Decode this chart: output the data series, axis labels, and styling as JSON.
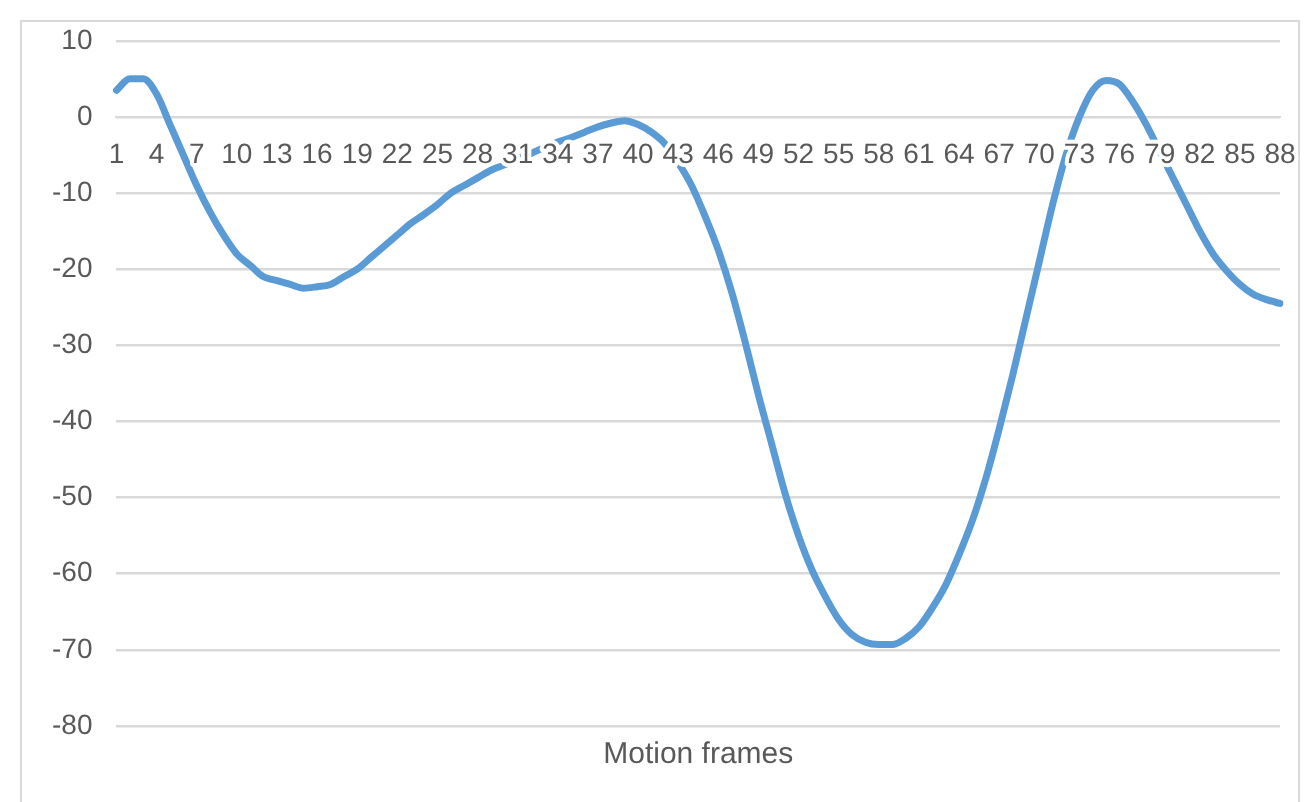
{
  "chart_data": {
    "type": "line",
    "xlabel": "Motion frames",
    "categories": [
      "1",
      null,
      null,
      "4",
      null,
      null,
      "7",
      null,
      null,
      "10",
      null,
      null,
      "13",
      null,
      null,
      "16",
      null,
      null,
      "19",
      null,
      null,
      "22",
      null,
      null,
      "25",
      null,
      null,
      "28",
      null,
      null,
      "31",
      null,
      null,
      "34",
      null,
      null,
      "37",
      null,
      null,
      "40",
      null,
      null,
      "43",
      null,
      null,
      "46",
      null,
      null,
      "49",
      null,
      null,
      "52",
      null,
      null,
      "55",
      null,
      null,
      "58",
      null,
      null,
      "61",
      null,
      null,
      "64",
      null,
      null,
      "67",
      null,
      null,
      "70",
      null,
      null,
      "73",
      null,
      null,
      "76",
      null,
      null,
      "79",
      null,
      null,
      "82",
      null,
      null,
      "85",
      null,
      null,
      "88"
    ],
    "series": [
      {
        "color": "#5b9bd5",
        "values": [
          3.5,
          5,
          5,
          3,
          -1,
          -5,
          -9,
          -12.5,
          -15.5,
          -18,
          -19.5,
          -21,
          -21.5,
          -22,
          -22.5,
          -22.3,
          -22,
          -21,
          -20,
          -18.5,
          -17,
          -15.5,
          -14,
          -12.8,
          -11.5,
          -10,
          -9,
          -8,
          -7,
          -6.3,
          -5.5,
          -4.8,
          -4,
          -3.3,
          -2.7,
          -2,
          -1.3,
          -0.8,
          -0.5,
          -1,
          -2,
          -3.5,
          -6,
          -9,
          -13,
          -17.5,
          -23,
          -29.5,
          -36.5,
          -43,
          -49.5,
          -55,
          -59.5,
          -63,
          -66,
          -68,
          -69,
          -69.3,
          -69.3,
          -68.5,
          -67,
          -64.5,
          -61.5,
          -57.5,
          -53,
          -47.5,
          -41,
          -34,
          -26.5,
          -19,
          -11.5,
          -5,
          0,
          3.5,
          4.8,
          4.3,
          2,
          -1,
          -4.5,
          -8,
          -11.5,
          -15,
          -18,
          -20.2,
          -22,
          -23.3,
          -24,
          -24.5
        ]
      }
    ],
    "ylim": [
      -80,
      10
    ],
    "yticks": [
      -80,
      -70,
      -60,
      -50,
      -40,
      -30,
      -20,
      -10,
      0,
      10
    ],
    "grid": "y",
    "legend": false,
    "marker": "none",
    "line_style": "solid"
  }
}
